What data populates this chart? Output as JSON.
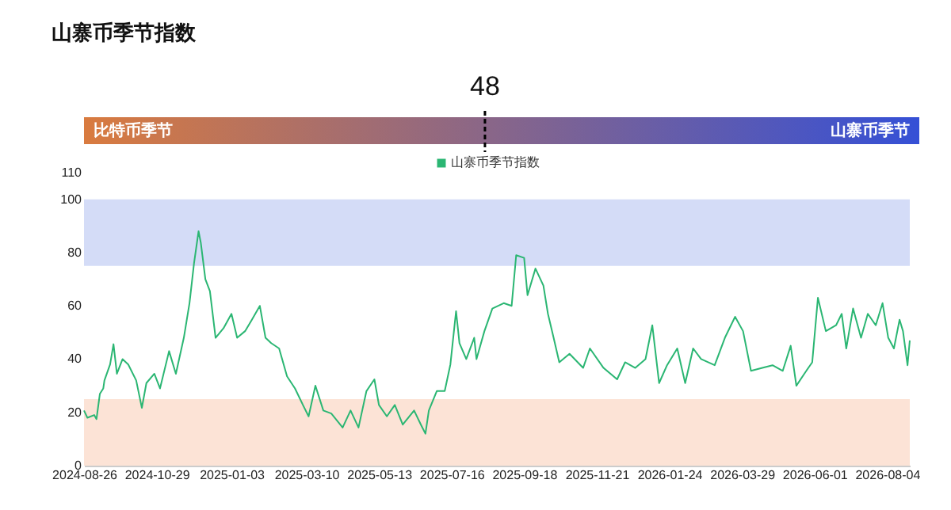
{
  "chart_data": [
    {
      "type": "other",
      "title": "山寨币季节指数",
      "annotations": [
        "比特币季节",
        "山寨币季节"
      ],
      "values": [
        48
      ],
      "data_labels": true
    },
    {
      "type": "line",
      "legend": "top",
      "grid": false,
      "marker": "none",
      "line_style": "solid",
      "x": [
        "2024-08-26",
        "2024-08-29",
        "2024-09-04",
        "2024-09-06",
        "2024-09-09",
        "2024-09-12",
        "2024-09-13",
        "2024-09-18",
        "2024-09-21",
        "2024-09-24",
        "2024-09-29",
        "2024-10-04",
        "2024-10-11",
        "2024-10-16",
        "2024-10-20",
        "2024-10-27",
        "2024-11-01",
        "2024-11-09",
        "2024-11-15",
        "2024-11-22",
        "2024-11-27",
        "2024-12-01",
        "2024-12-05",
        "2024-12-07",
        "2024-12-11",
        "2024-12-15",
        "2024-12-20",
        "2024-12-27",
        "2025-01-03",
        "2025-01-08",
        "2025-01-15",
        "2025-01-21",
        "2025-01-28",
        "2025-02-02",
        "2025-02-07",
        "2025-02-14",
        "2025-02-21",
        "2025-02-28",
        "2025-03-07",
        "2025-03-12",
        "2025-03-18",
        "2025-03-25",
        "2025-04-01",
        "2025-04-11",
        "2025-04-18",
        "2025-04-25",
        "2025-05-02",
        "2025-05-09",
        "2025-05-13",
        "2025-05-20",
        "2025-05-27",
        "2025-06-03",
        "2025-06-13",
        "2025-06-19",
        "2025-06-23",
        "2025-06-26",
        "2025-07-03",
        "2025-07-10",
        "2025-07-15",
        "2025-07-20",
        "2025-07-23",
        "2025-07-29",
        "2025-08-05",
        "2025-08-07",
        "2025-08-14",
        "2025-08-21",
        "2025-08-31",
        "2025-09-07",
        "2025-09-11",
        "2025-09-18",
        "2025-09-21",
        "2025-09-28",
        "2025-10-05",
        "2025-10-09",
        "2025-10-14",
        "2025-10-19",
        "2025-10-28",
        "2025-11-09",
        "2025-11-15",
        "2025-11-27",
        "2025-12-09",
        "2025-12-16",
        "2025-12-25",
        "2026-01-03",
        "2026-01-09",
        "2026-01-15",
        "2026-01-22",
        "2026-01-31",
        "2026-02-07",
        "2026-02-14",
        "2026-02-21",
        "2026-03-05",
        "2026-03-14",
        "2026-03-23",
        "2026-03-30",
        "2026-04-06",
        "2026-04-16",
        "2026-04-25",
        "2026-05-04",
        "2026-05-11",
        "2026-05-16",
        "2026-05-23",
        "2026-05-30",
        "2026-06-04",
        "2026-06-11",
        "2026-06-20",
        "2026-06-25",
        "2026-06-29",
        "2026-07-05",
        "2026-07-12",
        "2026-07-18",
        "2026-07-25",
        "2026-07-31",
        "2026-08-05",
        "2026-08-10",
        "2026-08-15",
        "2026-08-18",
        "2026-08-22",
        "2026-08-24"
      ],
      "series": [
        {
          "name": "山寨币季节指数",
          "color": "#2bb673",
          "values": [
            20.7,
            18,
            19,
            17.5,
            27,
            29,
            32,
            38,
            45.6,
            34.5,
            40,
            38,
            32,
            21.7,
            31,
            34.5,
            29,
            43,
            34.5,
            48,
            61,
            76,
            88,
            83.6,
            70,
            65.5,
            48,
            51.6,
            57,
            48,
            50.5,
            54.8,
            60,
            48,
            46,
            44,
            33.5,
            29,
            22.8,
            18.5,
            30,
            20.7,
            19.6,
            14.3,
            20.7,
            14.3,
            28,
            32.4,
            22.8,
            18.5,
            22.8,
            15.4,
            20.7,
            15.4,
            12,
            20.7,
            28,
            28,
            38,
            58,
            46,
            40,
            48,
            40,
            50.5,
            59,
            61,
            60,
            79,
            78,
            64,
            74,
            67.6,
            57,
            48,
            38.8,
            42,
            36.7,
            44,
            36.7,
            32.4,
            38.8,
            36.7,
            40,
            52.7,
            31,
            37.7,
            44,
            31,
            44,
            40,
            37.7,
            48,
            55.9,
            50.5,
            35.6,
            36.7,
            37.7,
            35.6,
            45,
            30,
            34.5,
            38.8,
            63,
            50.5,
            52.7,
            57,
            44,
            59,
            48,
            57,
            52.7,
            61,
            48,
            44,
            54.8,
            50.5,
            37.7,
            47
          ]
        }
      ],
      "xlim": [
        "2024-08-26",
        "2026-08-24"
      ],
      "xticks": [
        "2024-08-26",
        "2024-10-29",
        "2025-01-03",
        "2025-03-10",
        "2025-05-13",
        "2025-07-16",
        "2025-09-18",
        "2025-11-21",
        "2026-01-24",
        "2026-03-29",
        "2026-06-01",
        "2026-08-04"
      ],
      "ylim": [
        0,
        110
      ],
      "yticks": [
        0,
        20,
        40,
        60,
        80,
        100,
        110
      ],
      "bands": [
        {
          "axis": "y",
          "from": 75,
          "to": 100,
          "color": "#d4dcf7"
        },
        {
          "axis": "y",
          "from": 0,
          "to": 25,
          "color": "#fce3d6"
        }
      ]
    }
  ]
}
